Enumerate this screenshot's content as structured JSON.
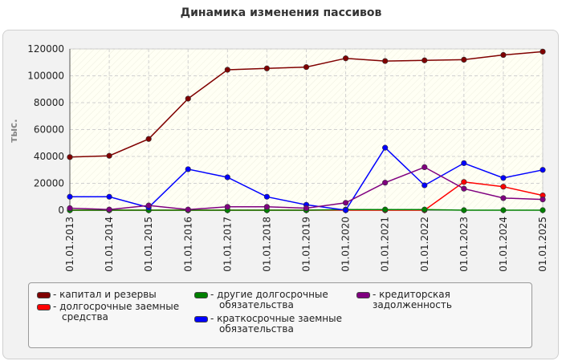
{
  "chart_data": {
    "type": "line",
    "title": "Динамика изменения пассивов",
    "ylabel": "тыс.",
    "xlabel": "",
    "ylim": [
      0,
      120000
    ],
    "yticks": [
      0,
      20000,
      40000,
      60000,
      80000,
      100000,
      120000
    ],
    "grid": true,
    "legend_position": "bottom",
    "categories": [
      "01.01.2013",
      "01.01.2014",
      "01.01.2015",
      "01.01.2016",
      "01.01.2017",
      "01.01.2018",
      "01.01.2019",
      "01.01.2020",
      "01.01.2021",
      "01.01.2022",
      "01.01.2023",
      "01.01.2024",
      "01.01.2025"
    ],
    "series": [
      {
        "name": "капитал и резервы",
        "color": "#800000",
        "values": [
          39500,
          40500,
          53000,
          83000,
          104500,
          105500,
          106500,
          113000,
          111000,
          111500,
          112000,
          115500,
          118000
        ]
      },
      {
        "name": "долгосрочные заемные средства",
        "color": "#ff0000",
        "values": [
          0,
          0,
          0,
          0,
          0,
          0,
          0,
          0,
          0,
          0,
          21000,
          17500,
          11000
        ]
      },
      {
        "name": "другие долгосрочные обязательства",
        "color": "#008000",
        "values": [
          0,
          0,
          0,
          0,
          0,
          0,
          0,
          500,
          500,
          500,
          0,
          0,
          0
        ]
      },
      {
        "name": "краткосрочные заемные обязательства",
        "color": "#0000ff",
        "values": [
          10000,
          10000,
          2000,
          30500,
          24500,
          10000,
          4000,
          0,
          46500,
          18500,
          35000,
          24000,
          30000
        ]
      },
      {
        "name": "кредиторская задолженность",
        "color": "#800080",
        "values": [
          1500,
          500,
          3500,
          500,
          2500,
          2500,
          1500,
          5500,
          20500,
          32000,
          16000,
          9000,
          8000
        ]
      }
    ]
  },
  "legend": {
    "items": [
      {
        "label_lines": [
          "- капитал и резервы"
        ],
        "color": "#800000"
      },
      {
        "label_lines": [
          "- долгосрочные заемные",
          "средства"
        ],
        "color": "#ff0000"
      },
      {
        "label_lines": [
          "- другие долгосрочные",
          "обязательства"
        ],
        "color": "#008000"
      },
      {
        "label_lines": [
          "- краткосрочные заемные",
          "обязательства"
        ],
        "color": "#0000ff"
      },
      {
        "label_lines": [
          "- кредиторская задолженность"
        ],
        "color": "#800080"
      }
    ]
  }
}
